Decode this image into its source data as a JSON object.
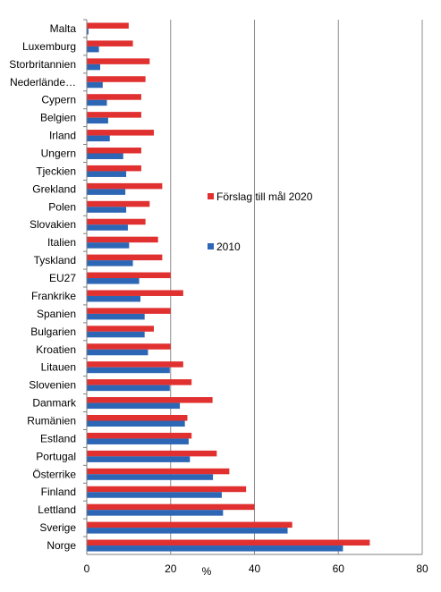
{
  "chart_data": {
    "type": "bar",
    "orientation": "horizontal",
    "title": "",
    "xlabel": "%",
    "ylabel": "",
    "xlim": [
      0,
      80
    ],
    "xticks": [
      0,
      20,
      40,
      60,
      80
    ],
    "grid": "vertical",
    "legend_position": "right",
    "categories": [
      "Malta",
      "Luxemburg",
      "Storbritannien",
      "Nederlände…",
      "Cypern",
      "Belgien",
      "Irland",
      "Ungern",
      "Tjeckien",
      "Grekland",
      "Polen",
      "Slovakien",
      "Italien",
      "Tyskland",
      "EU27",
      "Frankrike",
      "Spanien",
      "Bulgarien",
      "Kroatien",
      "Litauen",
      "Slovenien",
      "Danmark",
      "Rumänien",
      "Estland",
      "Portugal",
      "Österrike",
      "Finland",
      "Lettland",
      "Sverige",
      "Norge"
    ],
    "series": [
      {
        "name": "Förslag till mål 2020",
        "color": "#e0302f",
        "values": [
          10,
          11,
          15,
          14,
          13,
          13,
          16,
          13,
          13,
          18,
          15,
          14,
          17,
          18,
          20,
          23,
          20,
          16,
          20,
          23,
          25,
          30,
          24,
          25,
          31,
          34,
          38,
          40,
          49,
          67.5
        ]
      },
      {
        "name": "2010",
        "color": "#2c66b5",
        "values": [
          0.4,
          2.9,
          3.2,
          3.8,
          4.8,
          5.1,
          5.5,
          8.7,
          9.4,
          9.2,
          9.4,
          9.8,
          10.1,
          11,
          12.5,
          12.8,
          13.8,
          13.8,
          14.6,
          19.8,
          19.8,
          22.2,
          23.4,
          24.3,
          24.6,
          30.1,
          32.2,
          32.5,
          47.9,
          61.1
        ]
      }
    ]
  }
}
